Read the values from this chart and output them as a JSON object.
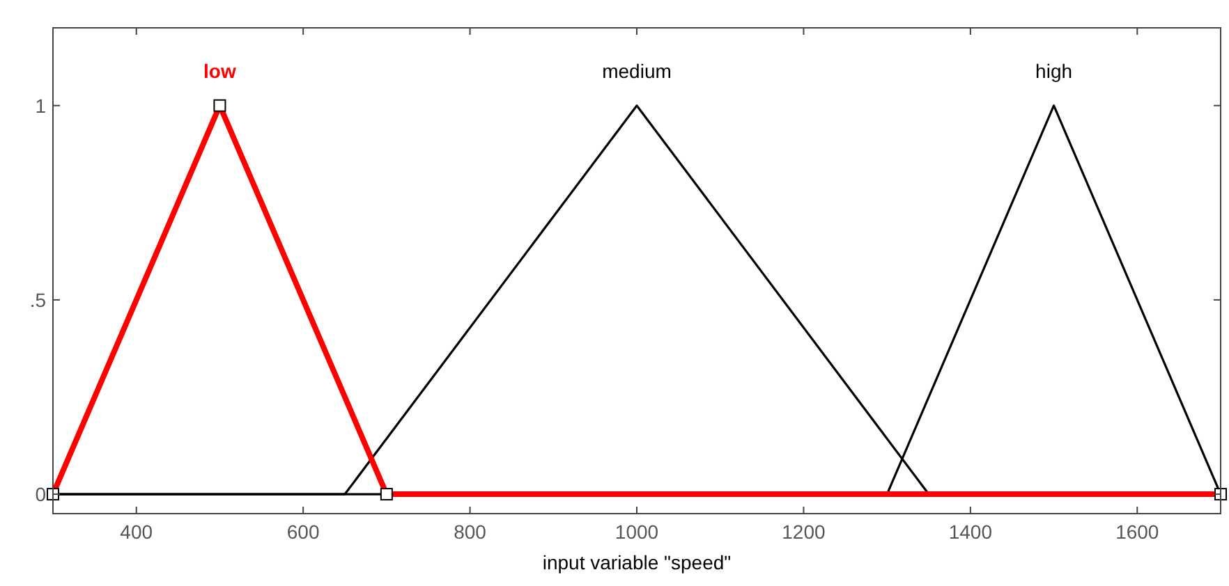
{
  "chart_data": {
    "type": "line",
    "xlabel": "input variable \"speed\"",
    "xlim": [
      300,
      1700
    ],
    "ylim": [
      -0.05,
      1.2
    ],
    "xticks": [
      400,
      600,
      800,
      1000,
      1200,
      1400,
      1600
    ],
    "yticks": [
      0,
      {
        "value": 0.5,
        "label": ".5"
      },
      1
    ],
    "grid": false,
    "line_style": "solid",
    "series": [
      {
        "name": "medium",
        "color": "#000000",
        "x": [
          300,
          650,
          1000,
          1350,
          1700
        ],
        "values": [
          0,
          0,
          1,
          0,
          0
        ],
        "marker": "none"
      },
      {
        "name": "high",
        "color": "#000000",
        "x": [
          300,
          1300,
          1500,
          1700
        ],
        "values": [
          0,
          0,
          1,
          0
        ],
        "marker": "none"
      },
      {
        "name": "low",
        "color": "#ff0000",
        "x": [
          300,
          500,
          700,
          1700
        ],
        "values": [
          0,
          1,
          0,
          0
        ],
        "marker": "square"
      }
    ]
  }
}
